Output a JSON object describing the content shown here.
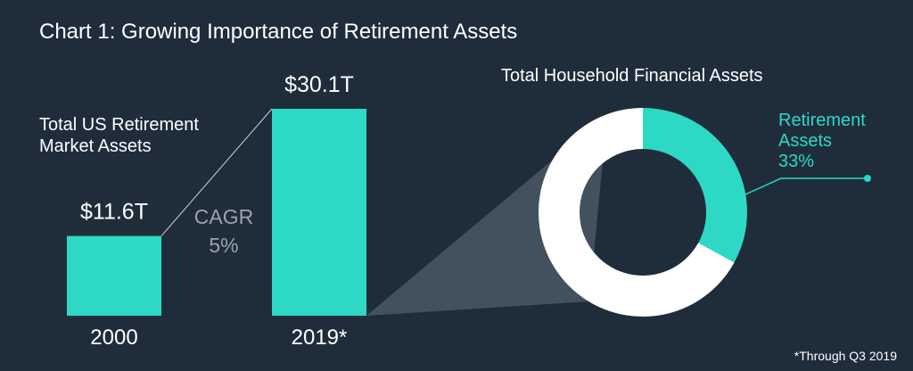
{
  "title": "Chart 1: Growing Importance of Retirement Assets",
  "footnote": "*Through Q3 2019",
  "colors": {
    "background": "#1f2d3b",
    "accent": "#2dd9c5",
    "text": "#ffffff",
    "muted": "#9aa3ad",
    "cone": "#4a5865",
    "donut_rest": "#ffffff"
  },
  "chart_data": [
    {
      "type": "bar",
      "title": "Total US Retirement Market Assets",
      "title_lines": [
        "Total US Retirement",
        "Market Assets"
      ],
      "categories": [
        "2000",
        "2019*"
      ],
      "values": [
        11.6,
        30.1
      ],
      "value_labels": [
        "$11.6T",
        "$30.1T"
      ],
      "unit": "trillion USD",
      "annotation": {
        "lines": [
          "CAGR",
          "5%"
        ]
      }
    },
    {
      "type": "pie",
      "title": "Total Household Financial Assets",
      "slices": [
        {
          "name": "Retirement Assets",
          "value": 33,
          "label_lines": [
            "Retirement",
            "Assets",
            "33%"
          ]
        },
        {
          "name": "",
          "value": 67
        }
      ]
    }
  ]
}
